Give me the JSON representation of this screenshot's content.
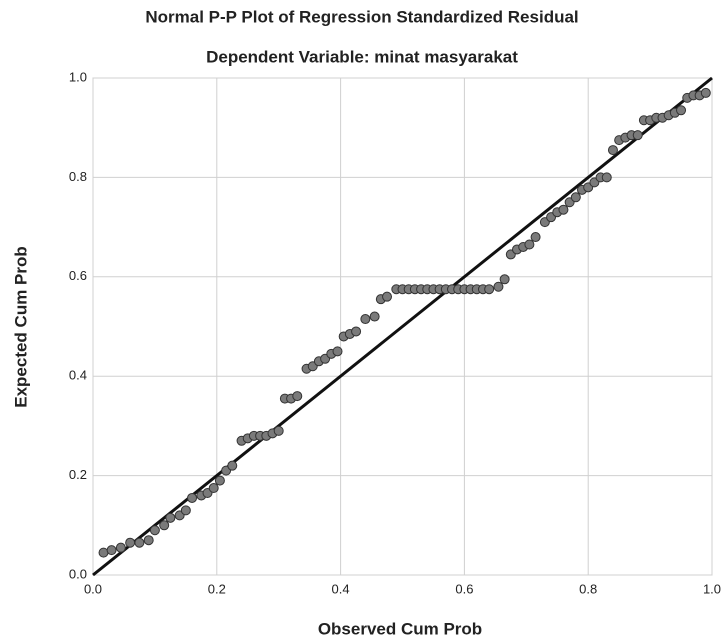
{
  "chart_data": {
    "type": "scatter",
    "title": "Normal P-P Plot of Regression Standardized Residual",
    "subtitle": "Dependent Variable: minat masyarakat",
    "x_label": "Observed Cum Prob",
    "y_label": "Expected Cum Prob",
    "x": [
      0.017,
      0.03,
      0.045,
      0.06,
      0.075,
      0.09,
      0.1,
      0.115,
      0.125,
      0.14,
      0.15,
      0.16,
      0.175,
      0.185,
      0.195,
      0.205,
      0.215,
      0.225,
      0.24,
      0.25,
      0.26,
      0.27,
      0.28,
      0.29,
      0.3,
      0.31,
      0.32,
      0.33,
      0.345,
      0.355,
      0.365,
      0.375,
      0.385,
      0.395,
      0.405,
      0.415,
      0.425,
      0.44,
      0.455,
      0.465,
      0.475,
      0.49,
      0.5,
      0.51,
      0.52,
      0.53,
      0.54,
      0.55,
      0.56,
      0.57,
      0.58,
      0.59,
      0.6,
      0.61,
      0.62,
      0.63,
      0.64,
      0.655,
      0.665,
      0.675,
      0.685,
      0.695,
      0.705,
      0.715,
      0.73,
      0.74,
      0.75,
      0.76,
      0.77,
      0.78,
      0.79,
      0.8,
      0.81,
      0.82,
      0.83,
      0.84,
      0.85,
      0.86,
      0.87,
      0.88,
      0.89,
      0.9,
      0.91,
      0.92,
      0.93,
      0.94,
      0.95,
      0.96,
      0.97,
      0.98,
      0.99
    ],
    "values": [
      0.045,
      0.05,
      0.055,
      0.065,
      0.065,
      0.07,
      0.09,
      0.1,
      0.115,
      0.12,
      0.13,
      0.155,
      0.16,
      0.165,
      0.175,
      0.19,
      0.21,
      0.22,
      0.27,
      0.275,
      0.28,
      0.28,
      0.28,
      0.285,
      0.29,
      0.355,
      0.355,
      0.36,
      0.415,
      0.42,
      0.43,
      0.435,
      0.445,
      0.45,
      0.48,
      0.485,
      0.49,
      0.515,
      0.52,
      0.555,
      0.56,
      0.575,
      0.575,
      0.575,
      0.575,
      0.575,
      0.575,
      0.575,
      0.575,
      0.575,
      0.575,
      0.575,
      0.575,
      0.575,
      0.575,
      0.575,
      0.575,
      0.58,
      0.595,
      0.645,
      0.655,
      0.66,
      0.665,
      0.68,
      0.71,
      0.72,
      0.73,
      0.735,
      0.75,
      0.76,
      0.775,
      0.78,
      0.79,
      0.8,
      0.8,
      0.855,
      0.875,
      0.88,
      0.885,
      0.885,
      0.915,
      0.915,
      0.92,
      0.92,
      0.925,
      0.93,
      0.935,
      0.96,
      0.965,
      0.965,
      0.97
    ],
    "color": "#7a7a7a",
    "xlim": [
      0,
      1
    ],
    "ylim": [
      0,
      1
    ],
    "xticks": [
      {
        "value": 0,
        "label": "0.0"
      },
      0.2,
      0.4,
      0.6,
      0.8,
      {
        "value": 1,
        "label": "1.0"
      }
    ],
    "yticks": [
      {
        "value": 0,
        "label": "0.0"
      },
      0.2,
      0.4,
      0.6,
      0.8,
      {
        "value": 1,
        "label": "1.0"
      }
    ],
    "grid": true
  }
}
